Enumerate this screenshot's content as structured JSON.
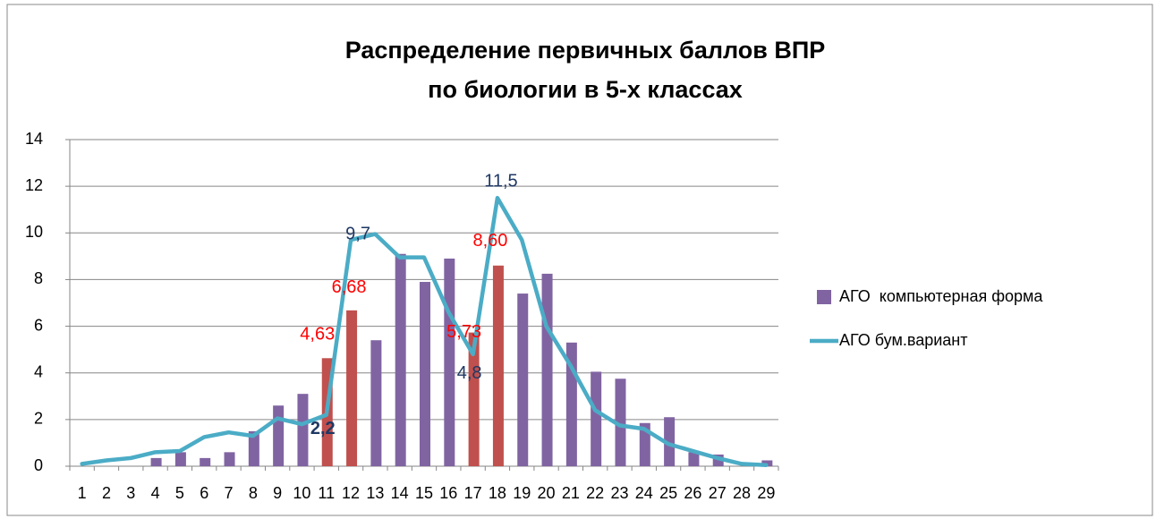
{
  "chart_data": {
    "type": "bar-line",
    "title": [
      "Распределение первичных баллов ВПР",
      "по биологии в 5-х классах"
    ],
    "categories": [
      "1",
      "2",
      "3",
      "4",
      "5",
      "6",
      "7",
      "8",
      "9",
      "10",
      "11",
      "12",
      "13",
      "14",
      "15",
      "16",
      "17",
      "18",
      "19",
      "20",
      "21",
      "22",
      "23",
      "24",
      "25",
      "26",
      "27",
      "28",
      "29"
    ],
    "ylim": [
      0,
      14
    ],
    "yticks": [
      0,
      2,
      4,
      6,
      8,
      10,
      12,
      14
    ],
    "grid": true,
    "legend": "right",
    "series": [
      {
        "name": "АГО  компьютерная форма",
        "type": "bar",
        "color": "#8064a2",
        "colors": [
          "#8064a2",
          "#8064a2",
          "#8064a2",
          "#8064a2",
          "#8064a2",
          "#8064a2",
          "#8064a2",
          "#8064a2",
          "#8064a2",
          "#8064a2",
          "#c0504d",
          "#c0504d",
          "#8064a2",
          "#8064a2",
          "#8064a2",
          "#8064a2",
          "#c0504d",
          "#c0504d",
          "#8064a2",
          "#8064a2",
          "#8064a2",
          "#8064a2",
          "#8064a2",
          "#8064a2",
          "#8064a2",
          "#8064a2",
          "#8064a2",
          "#8064a2",
          "#8064a2"
        ],
        "values": [
          0,
          0,
          0,
          0.35,
          0.6,
          0.35,
          0.6,
          1.5,
          2.6,
          3.1,
          4.63,
          6.68,
          5.4,
          9.1,
          7.9,
          8.9,
          5.73,
          8.6,
          7.4,
          8.25,
          5.3,
          4.05,
          3.75,
          1.85,
          2.1,
          0.6,
          0.5,
          0,
          0.25
        ],
        "value_labels": [
          null,
          null,
          null,
          null,
          null,
          null,
          null,
          null,
          null,
          null,
          "4,63",
          "6,68",
          null,
          null,
          null,
          null,
          "5,73",
          "8,60",
          null,
          null,
          null,
          null,
          null,
          null,
          null,
          null,
          null,
          null,
          null
        ],
        "label_color": "#ff0000"
      },
      {
        "name": "АГО бум.вариант",
        "type": "line",
        "color": "#4bacc6",
        "values": [
          0.1,
          0.25,
          0.35,
          0.6,
          0.65,
          1.25,
          1.45,
          1.3,
          2.05,
          1.8,
          2.2,
          9.7,
          9.95,
          8.95,
          8.95,
          6.6,
          4.8,
          11.5,
          9.7,
          6.0,
          4.3,
          2.4,
          1.75,
          1.6,
          0.95,
          0.65,
          0.35,
          0.1,
          0.05
        ],
        "value_labels": [
          null,
          null,
          null,
          null,
          null,
          null,
          null,
          null,
          null,
          null,
          "2,2",
          "9,7",
          null,
          null,
          null,
          null,
          "4,8",
          "11,5",
          null,
          null,
          null,
          null,
          null,
          null,
          null,
          null,
          null,
          null,
          null
        ],
        "label_color": "#1f3864"
      }
    ]
  }
}
